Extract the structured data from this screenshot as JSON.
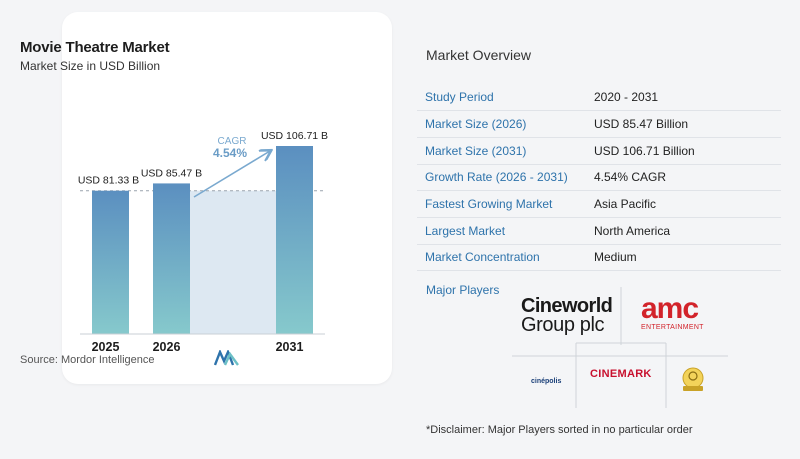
{
  "chart_data": {
    "type": "bar",
    "title": "Movie Theatre Market",
    "subtitle": "Market Size in USD Billion",
    "categories": [
      "2025",
      "2026",
      "2031"
    ],
    "values": [
      81.33,
      85.47,
      106.71
    ],
    "value_labels": [
      "USD 81.33 B",
      "USD 85.47 B",
      "USD 106.71 B"
    ],
    "cagr_label": "CAGR",
    "cagr_value": "4.54%",
    "source": "Source:  Mordor Intelligence",
    "bar_color_top": "#5b8fc0",
    "bar_color_bottom": "#86c9cc",
    "band_color": "#dde8f2",
    "arrow_color": "#7aa9cf",
    "ylim": [
      0,
      106.71
    ]
  },
  "overview": {
    "title": "Market Overview",
    "rows": [
      {
        "label": "Study Period",
        "value": "2020 - 2031"
      },
      {
        "label": "Market Size (2026)",
        "value": "USD 85.47 Billion"
      },
      {
        "label": "Market Size (2031)",
        "value": "USD 106.71 Billion"
      },
      {
        "label": "Growth Rate (2026 - 2031)",
        "value": "4.54% CAGR"
      },
      {
        "label": "Fastest Growing Market",
        "value": "Asia Pacific"
      },
      {
        "label": "Largest Market",
        "value": "North America"
      },
      {
        "label": "Market Concentration",
        "value": "Medium"
      }
    ],
    "players_label": "Major Players",
    "players": {
      "cineworld_line1": "Cineworld",
      "cineworld_line2": "Group plc",
      "amc": "amc",
      "amc_sub": "ENTERTAINMENT",
      "cinepolis": "cinépolis",
      "cinemark": "CINEMARK"
    },
    "disclaimer": "*Disclaimer: Major Players sorted in no particular order"
  },
  "colors": {
    "accent_blue": "#2e73ab",
    "amc_red": "#d2232a",
    "cinemark_red": "#c8102e"
  }
}
